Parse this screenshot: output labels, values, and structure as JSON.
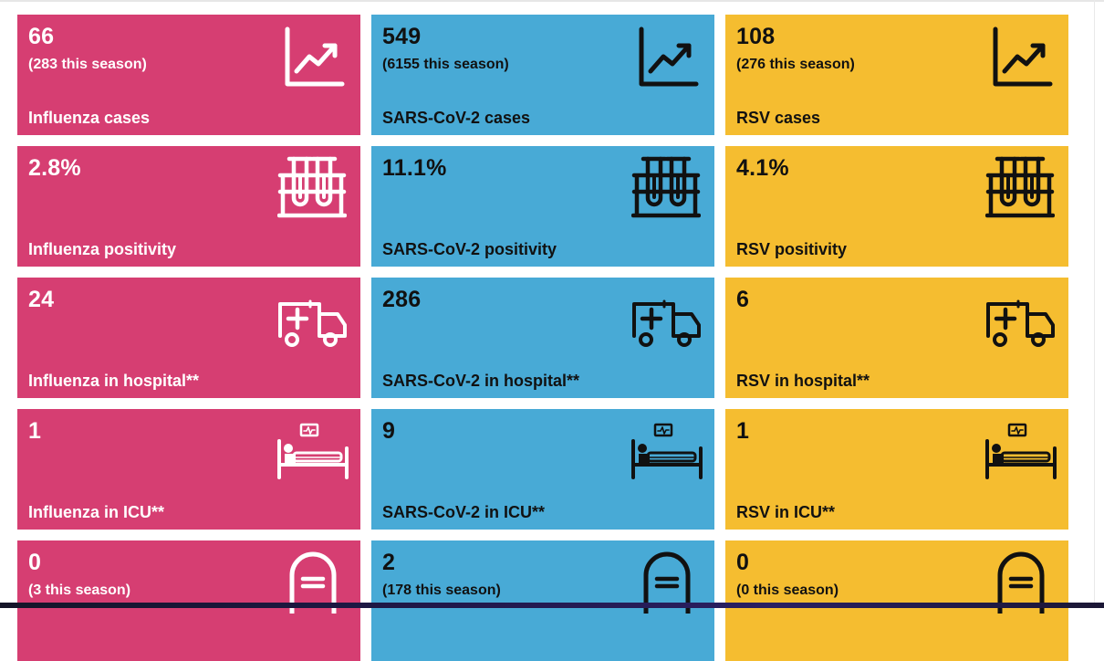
{
  "colors": {
    "influenza": "#d63e72",
    "sars": "#48aad6",
    "rsv": "#f5bd30",
    "text_light": "#ffffff",
    "text_dark": "#111111"
  },
  "columns": [
    {
      "key": "influenza",
      "theme": "light",
      "tiles": [
        {
          "value": "66",
          "sub": "(283 this season)",
          "label": "Influenza cases",
          "icon": "trend-chart-icon"
        },
        {
          "value": "2.8%",
          "sub": "",
          "label": "Influenza positivity",
          "icon": "test-tubes-icon"
        },
        {
          "value": "24",
          "sub": "",
          "label": "Influenza in hospital**",
          "icon": "ambulance-icon"
        },
        {
          "value": "1",
          "sub": "",
          "label": "Influenza in ICU**",
          "icon": "icu-bed-icon"
        },
        {
          "value": "0",
          "sub": "(3 this season)",
          "label": "",
          "icon": "tombstone-icon"
        }
      ]
    },
    {
      "key": "sars",
      "theme": "dark",
      "tiles": [
        {
          "value": "549",
          "sub": "(6155 this season)",
          "label": "SARS-CoV-2 cases",
          "icon": "trend-chart-icon"
        },
        {
          "value": "11.1%",
          "sub": "",
          "label": "SARS-CoV-2 positivity",
          "icon": "test-tubes-icon"
        },
        {
          "value": "286",
          "sub": "",
          "label": "SARS-CoV-2 in hospital**",
          "icon": "ambulance-icon"
        },
        {
          "value": "9",
          "sub": "",
          "label": "SARS-CoV-2 in ICU**",
          "icon": "icu-bed-icon"
        },
        {
          "value": "2",
          "sub": "(178 this season)",
          "label": "",
          "icon": "tombstone-icon"
        }
      ]
    },
    {
      "key": "rsv",
      "theme": "dark",
      "tiles": [
        {
          "value": "108",
          "sub": "(276 this season)",
          "label": "RSV cases",
          "icon": "trend-chart-icon"
        },
        {
          "value": "4.1%",
          "sub": "",
          "label": "RSV positivity",
          "icon": "test-tubes-icon"
        },
        {
          "value": "6",
          "sub": "",
          "label": "RSV in hospital**",
          "icon": "ambulance-icon"
        },
        {
          "value": "1",
          "sub": "",
          "label": "RSV in ICU**",
          "icon": "icu-bed-icon"
        },
        {
          "value": "0",
          "sub": "(0 this season)",
          "label": "",
          "icon": "tombstone-icon"
        }
      ]
    }
  ]
}
